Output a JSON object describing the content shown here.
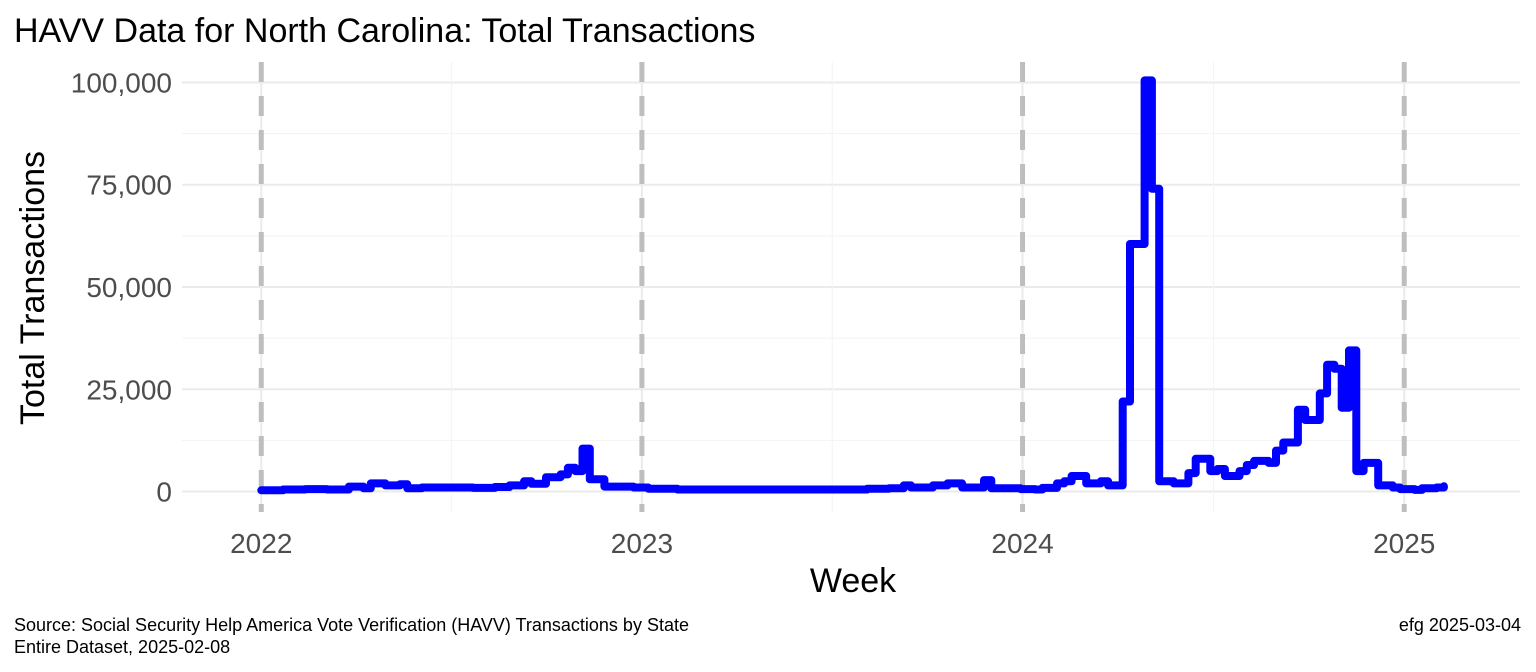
{
  "chart_data": {
    "type": "line",
    "title": "HAVV Data for North Carolina:  Total Transactions",
    "xlabel": "Week",
    "ylabel": "Total Transactions",
    "x_ticks": [
      "2022",
      "2023",
      "2024",
      "2025"
    ],
    "y_ticks": [
      "0",
      "25,000",
      "50,000",
      "75,000",
      "100,000"
    ],
    "y_tick_values": [
      0,
      25000,
      50000,
      75000,
      100000
    ],
    "xlim": [
      "2021-10-17",
      "2025-04-22"
    ],
    "ylim": [
      -5000,
      105000
    ],
    "grid": true,
    "year_markers": [
      "2022-01-01",
      "2023-01-01",
      "2024-01-01",
      "2025-01-01"
    ],
    "line_style": "step",
    "series": [
      {
        "color": "#0000ff",
        "points": [
          [
            "2022-01-01",
            300
          ],
          [
            "2022-01-22",
            500
          ],
          [
            "2022-02-12",
            600
          ],
          [
            "2022-03-05",
            500
          ],
          [
            "2022-03-26",
            1200
          ],
          [
            "2022-04-09",
            800
          ],
          [
            "2022-04-16",
            2000
          ],
          [
            "2022-04-30",
            1500
          ],
          [
            "2022-05-14",
            1800
          ],
          [
            "2022-05-21",
            800
          ],
          [
            "2022-06-04",
            1000
          ],
          [
            "2022-07-02",
            1000
          ],
          [
            "2022-07-23",
            900
          ],
          [
            "2022-08-13",
            1100
          ],
          [
            "2022-08-27",
            1500
          ],
          [
            "2022-09-10",
            2500
          ],
          [
            "2022-09-17",
            1900
          ],
          [
            "2022-10-01",
            3500
          ],
          [
            "2022-10-15",
            4200
          ],
          [
            "2022-10-22",
            5800
          ],
          [
            "2022-10-29",
            5000
          ],
          [
            "2022-11-05",
            10500
          ],
          [
            "2022-11-12",
            3000
          ],
          [
            "2022-11-26",
            1200
          ],
          [
            "2022-12-24",
            1000
          ],
          [
            "2023-01-07",
            700
          ],
          [
            "2023-02-04",
            500
          ],
          [
            "2023-04-01",
            500
          ],
          [
            "2023-06-03",
            500
          ],
          [
            "2023-08-05",
            700
          ],
          [
            "2023-08-26",
            800
          ],
          [
            "2023-09-09",
            1500
          ],
          [
            "2023-09-16",
            1000
          ],
          [
            "2023-10-07",
            1500
          ],
          [
            "2023-10-21",
            2000
          ],
          [
            "2023-11-04",
            1000
          ],
          [
            "2023-11-25",
            2800
          ],
          [
            "2023-12-02",
            800
          ],
          [
            "2023-12-30",
            600
          ],
          [
            "2024-01-13",
            500
          ],
          [
            "2024-01-20",
            900
          ],
          [
            "2024-02-03",
            2000
          ],
          [
            "2024-02-10",
            2500
          ],
          [
            "2024-02-17",
            3800
          ],
          [
            "2024-03-02",
            2000
          ],
          [
            "2024-03-16",
            2500
          ],
          [
            "2024-03-23",
            1500
          ],
          [
            "2024-04-06",
            22000
          ],
          [
            "2024-04-13",
            60500
          ],
          [
            "2024-04-27",
            100500
          ],
          [
            "2024-05-04",
            74000
          ],
          [
            "2024-05-11",
            2500
          ],
          [
            "2024-05-25",
            2000
          ],
          [
            "2024-06-08",
            4500
          ],
          [
            "2024-06-15",
            8000
          ],
          [
            "2024-06-29",
            5000
          ],
          [
            "2024-07-06",
            5500
          ],
          [
            "2024-07-13",
            3800
          ],
          [
            "2024-07-27",
            5000
          ],
          [
            "2024-08-03",
            6500
          ],
          [
            "2024-08-10",
            7500
          ],
          [
            "2024-08-24",
            7000
          ],
          [
            "2024-08-31",
            10000
          ],
          [
            "2024-09-07",
            12000
          ],
          [
            "2024-09-21",
            20000
          ],
          [
            "2024-09-28",
            17500
          ],
          [
            "2024-10-12",
            24000
          ],
          [
            "2024-10-19",
            31000
          ],
          [
            "2024-10-26",
            30000
          ],
          [
            "2024-11-02",
            20500
          ],
          [
            "2024-11-09",
            34500
          ],
          [
            "2024-11-16",
            5000
          ],
          [
            "2024-11-23",
            7000
          ],
          [
            "2024-12-07",
            1500
          ],
          [
            "2024-12-21",
            1000
          ],
          [
            "2024-12-28",
            600
          ],
          [
            "2025-01-11",
            400
          ],
          [
            "2025-01-18",
            800
          ],
          [
            "2025-02-01",
            1000
          ],
          [
            "2025-02-08",
            1300
          ]
        ]
      }
    ]
  },
  "caption": {
    "source": "Source:  Social Security Help America Vote Verification (HAVV) Transactions by State",
    "dataset": "Entire Dataset, 2025-02-08",
    "author": "efg 2025-03-04"
  }
}
